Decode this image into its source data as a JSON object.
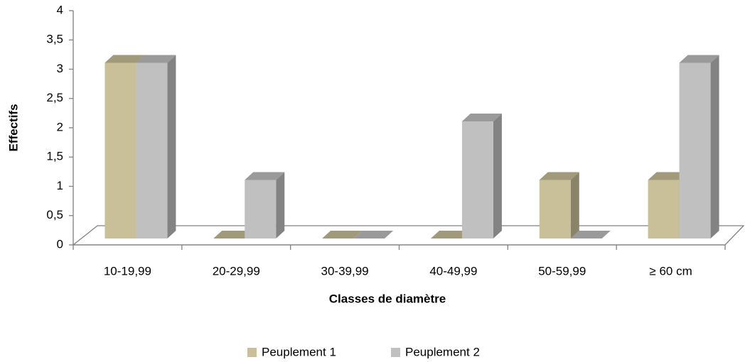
{
  "chart_data": {
    "type": "bar3d",
    "x_label": "Classes de diamètre",
    "y_label": "Effectifs",
    "categories": [
      "10-19,99",
      "20-29,99",
      "30-39,99",
      "40-49,99",
      "50-59,99",
      "≥ 60 cm"
    ],
    "series": [
      {
        "name": "Peuplement 1",
        "color": "#c9c099",
        "values": [
          3,
          0,
          0,
          0,
          1,
          1
        ]
      },
      {
        "name": "Peuplement 2",
        "color": "#c0c0c0",
        "values": [
          3,
          1,
          0,
          2,
          0,
          3
        ]
      }
    ],
    "ylim": [
      0,
      4
    ],
    "yticks": [
      0,
      {
        "value": 0.5,
        "label": "0,5"
      },
      1,
      {
        "value": 1.5,
        "label": "1,5"
      },
      2,
      {
        "value": 2.5,
        "label": "2,5"
      },
      3,
      {
        "value": 3.5,
        "label": "3,5"
      },
      4
    ],
    "legend": "bottom",
    "grid": false
  }
}
